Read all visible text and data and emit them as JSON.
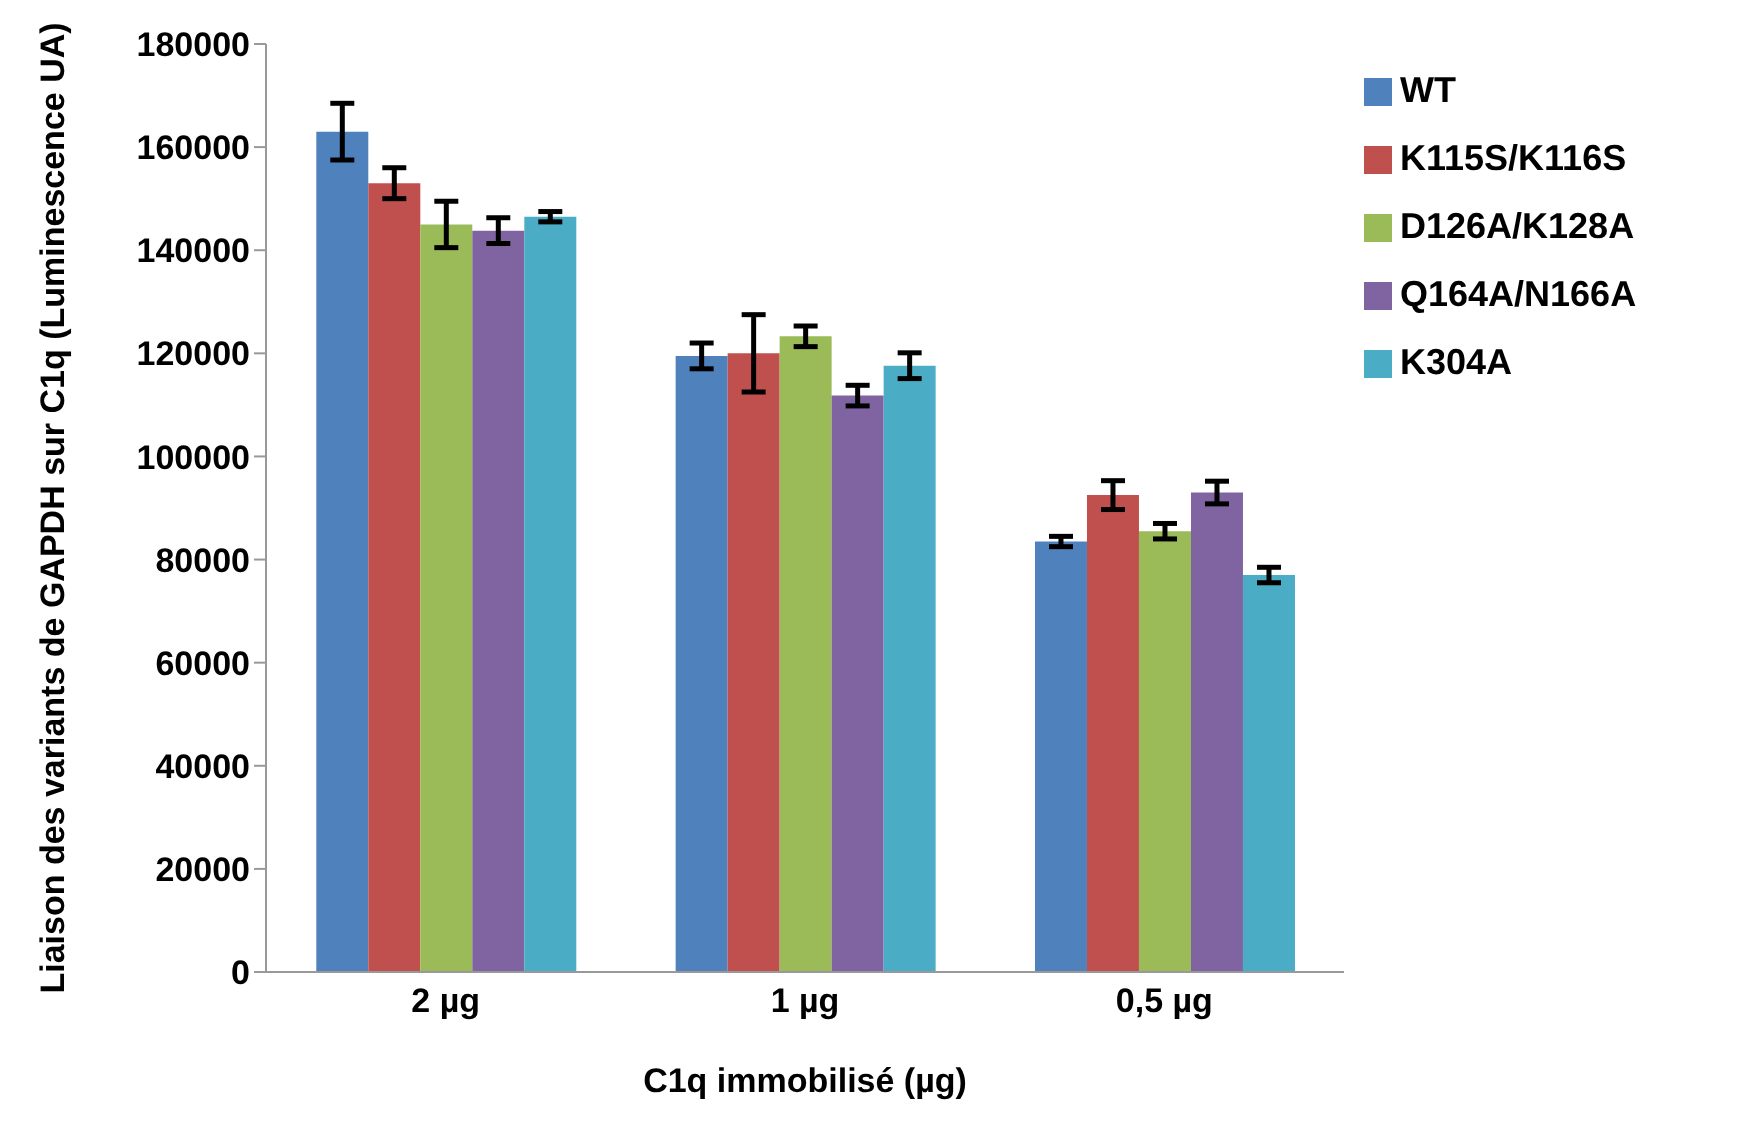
{
  "chart_data": {
    "type": "bar",
    "xlabel": "C1q immobilisé (µg)",
    "ylabel": "Liaison des variants de GAPDH sur C1q (Luminescence UA)",
    "categories": [
      "2 µg",
      "1 µg",
      "0,5 µg"
    ],
    "series": [
      {
        "name": "WT",
        "color": "#4f81bd",
        "values": [
          163000,
          119500,
          83500
        ],
        "errors": [
          5500,
          2500,
          1000
        ]
      },
      {
        "name": "K115S/K116S",
        "color": "#c0504d",
        "values": [
          153000,
          120000,
          92500
        ],
        "errors": [
          3000,
          7500,
          2800
        ]
      },
      {
        "name": "D126A/K128A",
        "color": "#9bbb59",
        "values": [
          145000,
          123300,
          85500
        ],
        "errors": [
          4500,
          2000,
          1500
        ]
      },
      {
        "name": "Q164A/N166A",
        "color": "#8064a2",
        "values": [
          143800,
          111800,
          93000
        ],
        "errors": [
          2500,
          2000,
          2200
        ]
      },
      {
        "name": "K304A",
        "color": "#4bacc6",
        "values": [
          146500,
          117600,
          77000
        ],
        "errors": [
          1000,
          2500,
          1500
        ]
      }
    ],
    "ylim": [
      0,
      180000
    ],
    "yticks": [
      0,
      20000,
      40000,
      60000,
      80000,
      100000,
      120000,
      140000,
      160000,
      180000
    ],
    "grid": false,
    "legend": "top right"
  }
}
